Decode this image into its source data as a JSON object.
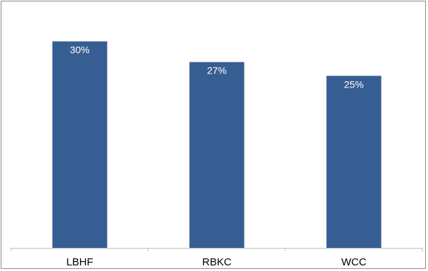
{
  "chart_data": {
    "type": "bar",
    "title": "",
    "xlabel": "",
    "ylabel": "",
    "categories": [
      "LBHF",
      "RBKC",
      "WCC"
    ],
    "values": [
      30,
      27,
      25
    ],
    "data_labels": [
      "30%",
      "27%",
      "25%"
    ],
    "ylim": [
      0,
      35
    ],
    "bar_color": "#375E93",
    "grid": false,
    "legend": "none"
  }
}
